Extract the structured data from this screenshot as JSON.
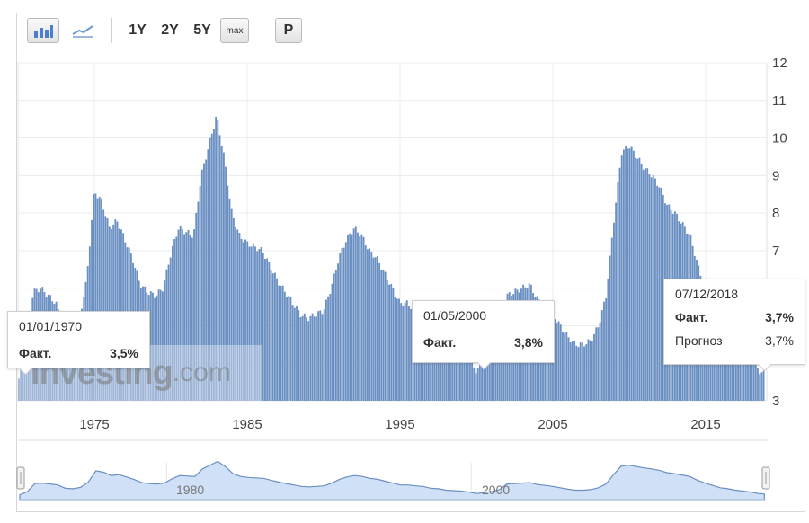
{
  "toolbar": {
    "bar_icon": "bar-chart-icon",
    "line_icon": "line-chart-icon",
    "range_1y": "1Y",
    "range_2y": "2Y",
    "range_5y": "5Y",
    "range_max": "max",
    "print_label": "P"
  },
  "watermark": {
    "brand": "Investing",
    "domain": ".com"
  },
  "colors": {
    "bar": "#6a8fc2",
    "bar_stroke": "#4f75ad",
    "nav_fill": "#cfe0f7",
    "nav_line": "#6a8fc2"
  },
  "tooltips": [
    {
      "date": "01/01/1970",
      "fact_label": "Факт.",
      "fact_value": "3,5%"
    },
    {
      "date": "01/05/2000",
      "fact_label": "Факт.",
      "fact_value": "3,8%"
    },
    {
      "date": "07/12/2018",
      "fact_label": "Факт.",
      "fact_value": "3,7%",
      "forecast_label": "Прогноз",
      "forecast_value": "3,7%"
    }
  ],
  "navigator": {
    "labels": [
      "1980",
      "2000"
    ]
  },
  "chart_data": {
    "type": "bar",
    "title": "",
    "xlabel": "",
    "ylabel": "",
    "ylim": [
      3,
      12
    ],
    "yticks": [
      "3",
      "7",
      "8",
      "9",
      "10",
      "11",
      "12"
    ],
    "xlim": [
      1970.0,
      2019.0
    ],
    "xticks": [
      "1975",
      "1985",
      "1995",
      "2005",
      "2015"
    ],
    "grid": true,
    "series": [
      {
        "x": [
          1970.0,
          1970.5,
          1971.0,
          1971.5,
          1972.0,
          1972.5,
          1973.0,
          1973.5,
          1974.0,
          1974.5,
          1975.0,
          1975.5,
          1976.0,
          1976.5,
          1977.0,
          1977.5,
          1978.0,
          1978.5,
          1979.0,
          1979.5,
          1980.0,
          1980.5,
          1981.0,
          1981.5,
          1982.0,
          1982.5,
          1983.0,
          1983.5,
          1984.0,
          1984.5,
          1985.0,
          1985.5,
          1986.0,
          1986.5,
          1987.0,
          1987.5,
          1988.0,
          1988.5,
          1989.0,
          1989.5,
          1990.0,
          1990.5,
          1991.0,
          1991.5,
          1992.0,
          1992.5,
          1993.0,
          1993.5,
          1994.0,
          1994.5,
          1995.0,
          1995.5,
          1996.0,
          1996.5,
          1997.0,
          1997.5,
          1998.0,
          1998.5,
          1999.0,
          1999.5,
          2000.0,
          2000.5,
          2001.0,
          2001.5,
          2002.0,
          2002.5,
          2003.0,
          2003.5,
          2004.0,
          2004.5,
          2005.0,
          2005.5,
          2006.0,
          2006.5,
          2007.0,
          2007.5,
          2008.0,
          2008.5,
          2009.0,
          2009.5,
          2010.0,
          2010.5,
          2011.0,
          2011.5,
          2012.0,
          2012.5,
          2013.0,
          2013.5,
          2014.0,
          2014.5,
          2015.0,
          2015.5,
          2016.0,
          2016.5,
          2017.0,
          2017.5,
          2018.0,
          2018.5,
          2018.9
        ],
        "values": [
          3.5,
          4.2,
          5.9,
          6.0,
          5.8,
          5.6,
          4.9,
          4.8,
          5.1,
          6.2,
          8.6,
          8.3,
          7.6,
          7.8,
          7.3,
          6.8,
          6.1,
          5.9,
          5.8,
          6.0,
          6.9,
          7.6,
          7.5,
          7.4,
          9.0,
          9.8,
          10.6,
          9.5,
          8.0,
          7.4,
          7.2,
          7.1,
          7.0,
          6.6,
          6.2,
          5.9,
          5.6,
          5.3,
          5.2,
          5.3,
          5.4,
          6.0,
          6.8,
          7.3,
          7.6,
          7.4,
          7.0,
          6.8,
          6.4,
          6.0,
          5.6,
          5.6,
          5.4,
          5.3,
          4.9,
          4.8,
          4.5,
          4.4,
          4.3,
          4.1,
          3.8,
          4.0,
          4.2,
          4.6,
          5.8,
          5.9,
          6.0,
          6.1,
          5.7,
          5.5,
          5.3,
          5.0,
          4.7,
          4.5,
          4.5,
          4.6,
          5.0,
          5.8,
          7.8,
          9.6,
          9.8,
          9.5,
          9.2,
          9.0,
          8.7,
          8.2,
          8.0,
          7.7,
          7.4,
          6.6,
          6.0,
          5.5,
          5.0,
          4.8,
          4.5,
          4.3,
          4.1,
          3.8,
          3.7
        ]
      }
    ]
  }
}
